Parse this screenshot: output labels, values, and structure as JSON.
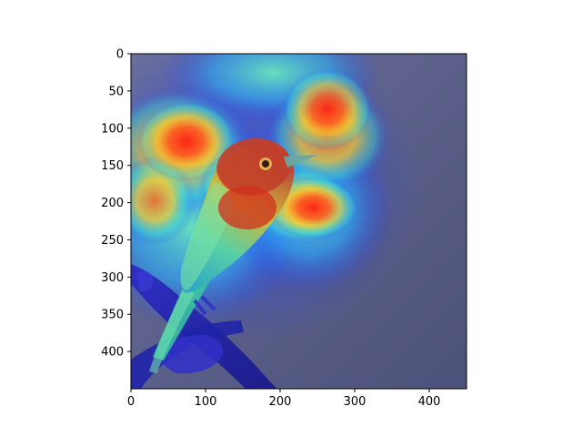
{
  "figure": {
    "x_axis": {
      "ticks": [
        "0",
        "100",
        "200",
        "300",
        "400"
      ],
      "range": [
        0,
        450
      ]
    },
    "y_axis": {
      "ticks": [
        "0",
        "50",
        "100",
        "150",
        "200",
        "250",
        "300",
        "350",
        "400"
      ],
      "range": [
        0,
        450
      ]
    },
    "image": {
      "subject": "bird-on-branch",
      "overlay": "jet-heatmap",
      "hot_regions": [
        "head",
        "upper-center",
        "center-right"
      ],
      "colors": {
        "background": "#5a5f8a",
        "bird_head": "#c2402a",
        "heat_red": "#ff3a1a",
        "heat_yellow": "#ffd22a",
        "heat_cyan": "#3be0d8",
        "heat_blue": "#1e3cff"
      }
    }
  }
}
